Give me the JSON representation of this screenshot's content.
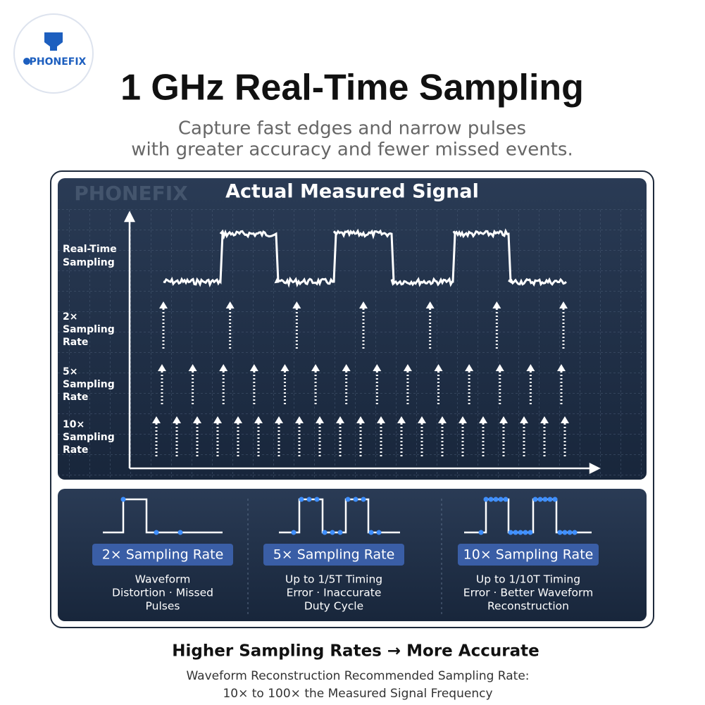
{
  "logo": "PHONEFIX",
  "header": {
    "title": "1 GHz Real-Time Sampling",
    "subtitle": [
      "Capture fast edges and narrow pulses",
      "with greater accuracy and fewer missed events."
    ]
  },
  "panel": {
    "watermark": "PHONEFIX",
    "title": "Actual Measured Signal",
    "rows": [
      {
        "label": [
          "Real-Time",
          "Sampling"
        ]
      },
      {
        "label": [
          "2×",
          "Sampling",
          "Rate"
        ]
      },
      {
        "label": [
          "5×",
          "Sampling",
          "Rate"
        ]
      },
      {
        "label": [
          "10×",
          "Sampling",
          "Rate"
        ]
      }
    ]
  },
  "cards": [
    {
      "label": "2× Sampling Rate",
      "text": [
        "Waveform",
        "Distortion · Missed",
        "Pulses"
      ]
    },
    {
      "label": "5× Sampling Rate",
      "text": [
        "Up to 1/5T Timing",
        "Error · Inaccurate",
        "Duty Cycle"
      ]
    },
    {
      "label": "10× Sampling Rate",
      "text": [
        "Up to 1/10T Timing",
        "Error · Better Waveform",
        "Reconstruction"
      ]
    }
  ],
  "footer": {
    "headline": "Higher Sampling Rates → More Accurate",
    "text": [
      "Waveform Reconstruction Recommended Sampling Rate:",
      "10× to 100× the Measured Signal Frequency"
    ]
  }
}
